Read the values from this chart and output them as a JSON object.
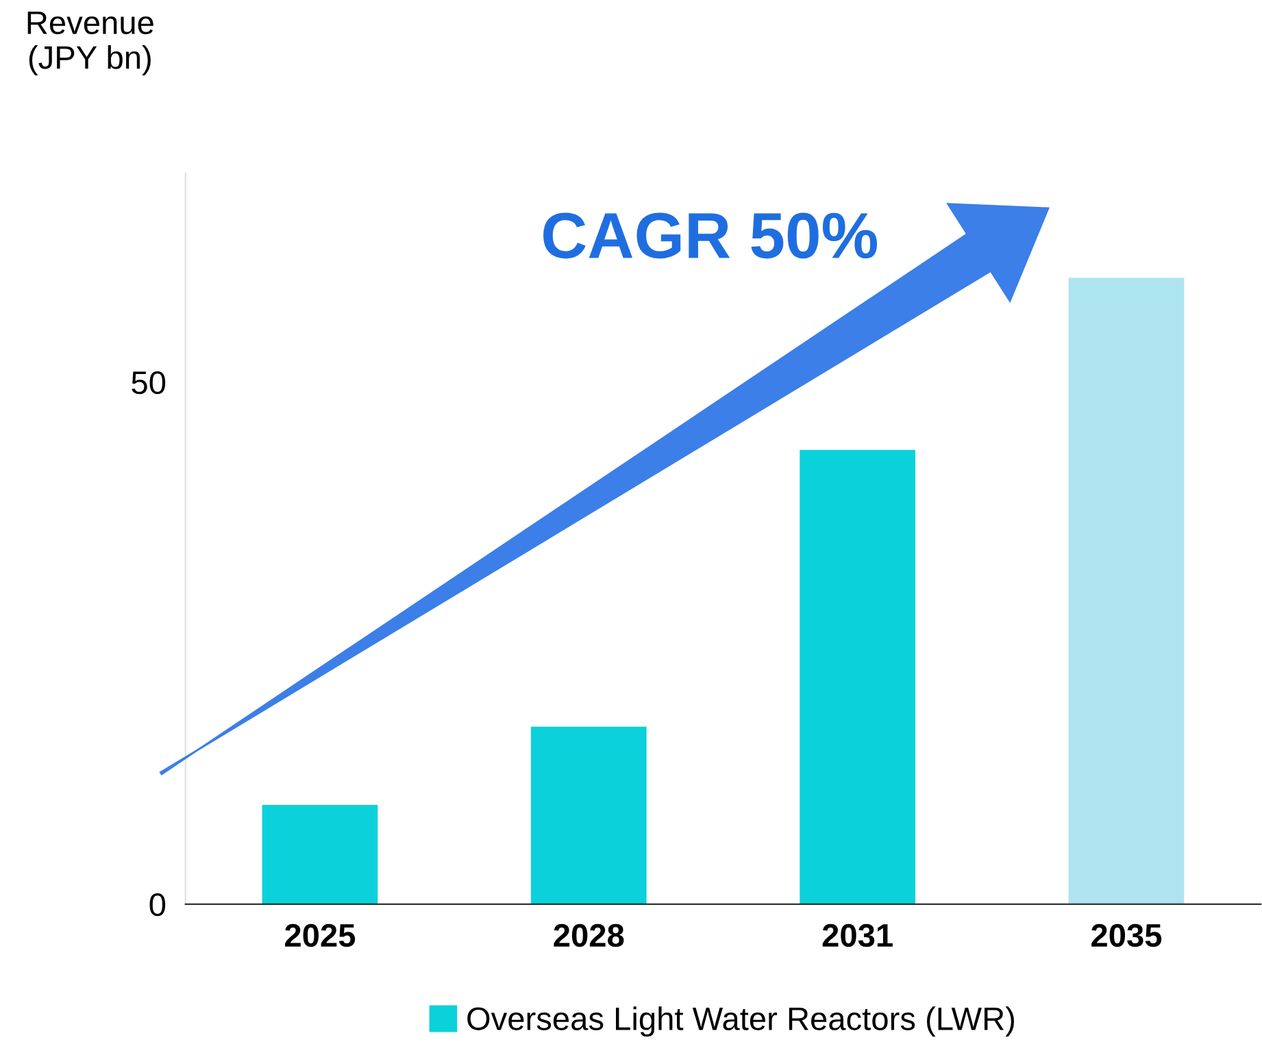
{
  "chart_data": {
    "type": "bar",
    "ylabel": "Revenue\n(JPY bn)",
    "categories": [
      "2025",
      "2028",
      "2031",
      "2035"
    ],
    "series": [
      {
        "name": "Overseas Light Water Reactors (LWR)",
        "color": "#0bd2da",
        "colors": [
          "#0bd2da",
          "#0bd2da",
          "#0bd2da",
          "#aee4ef"
        ],
        "values": [
          9.5,
          17,
          43.5,
          60
        ]
      }
    ],
    "ylim": [
      0,
      70
    ],
    "yticks": [
      0,
      50
    ],
    "grid": false,
    "legend": "bottom",
    "annotations": [
      "CAGR 50%"
    ]
  }
}
